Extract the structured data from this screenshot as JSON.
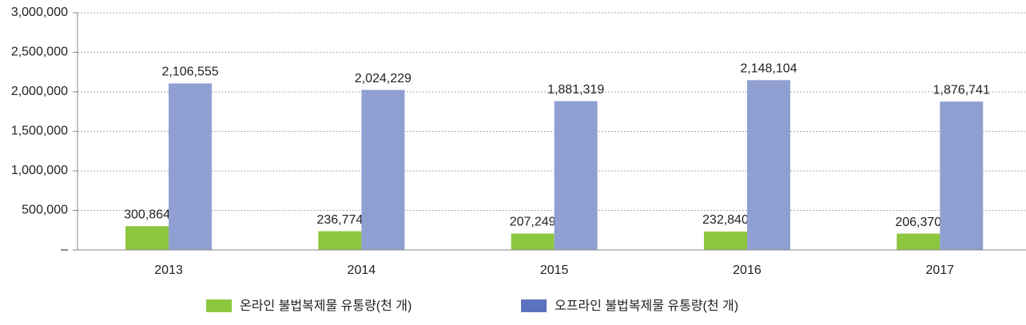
{
  "chart_data": {
    "type": "bar",
    "categories": [
      "2013",
      "2014",
      "2015",
      "2016",
      "2017"
    ],
    "series": [
      {
        "name": "온라인 불법복제물 유통량(천 개)",
        "color": "#8dc63f",
        "legend_color": "#8dc63f",
        "values": [
          300864,
          236774,
          207249,
          232840,
          206370
        ],
        "value_labels": [
          "300,864",
          "236,774",
          "207,249",
          "232,840",
          "206,370"
        ]
      },
      {
        "name": "오프라인 불법복제물 유통량(천 개)",
        "color": "#8f9fd1",
        "legend_color": "#5a72c0",
        "values": [
          2106555,
          2024229,
          1881319,
          2148104,
          1876741
        ],
        "value_labels": [
          "2,106,555",
          "2,024,229",
          "1,881,319",
          "2,148,104",
          "1,876,741"
        ]
      }
    ],
    "ylim": [
      0,
      3000000
    ],
    "yticks": [
      {
        "value": 0,
        "label": "–"
      },
      {
        "value": 500000,
        "label": "500,000"
      },
      {
        "value": 1000000,
        "label": "1,000,000"
      },
      {
        "value": 1500000,
        "label": "1,500,000"
      },
      {
        "value": 2000000,
        "label": "2,000,000"
      },
      {
        "value": 2500000,
        "label": "2,500,000"
      },
      {
        "value": 3000000,
        "label": "3,000,000"
      }
    ],
    "grid": true
  }
}
